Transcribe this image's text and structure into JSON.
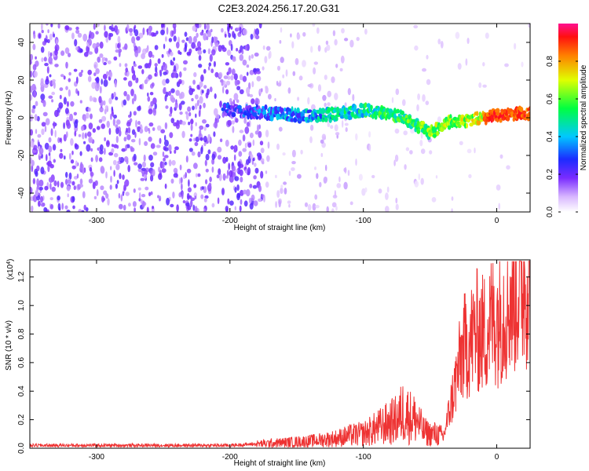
{
  "title": "C2E3.2024.256.17.20.G31",
  "chart_data": [
    {
      "type": "heatmap",
      "xlabel": "Height of straight line (km)",
      "ylabel": "Frequency (Hz)",
      "xlim": [
        -350,
        25
      ],
      "ylim": [
        -50,
        50
      ],
      "xticks": [
        -300,
        -200,
        -100,
        0
      ],
      "yticks": [
        -40,
        -20,
        0,
        20,
        40
      ],
      "colorbar": {
        "label": "Normalized spectral amplitude",
        "range": [
          0,
          1
        ],
        "ticks": [
          "0.0",
          "0.2",
          "0.4",
          "0.6",
          "0.8"
        ]
      },
      "ridge": {
        "x": [
          -205,
          -180,
          -160,
          -140,
          -120,
          -100,
          -90,
          -80,
          -70,
          -60,
          -50,
          -45,
          -40,
          -30,
          -20,
          -10,
          0,
          10,
          25
        ],
        "y": [
          4,
          3,
          2,
          1,
          2,
          4,
          3,
          2,
          0,
          -4,
          -8,
          -6,
          -3,
          -2,
          -1,
          0,
          1,
          2,
          2
        ]
      },
      "regions": [
        {
          "x": [
            -350,
            -175
          ],
          "description_level": "broadband noise (low amplitude, purple)"
        },
        {
          "x": [
            -175,
            -50
          ],
          "description_level": "scattered noise fading"
        },
        {
          "x": [
            -205,
            25
          ],
          "description_level": "coherent ridge near 0 Hz, amplitude rising toward 0 km"
        }
      ]
    },
    {
      "type": "line",
      "xlabel": "Height of straight line (km)",
      "ylabel": "SNR (10 * v/v)",
      "y_scale_label": "(x10",
      "y_scale_exp": "4",
      "y_scale_suffix": ")",
      "xlim": [
        -350,
        25
      ],
      "ylim": [
        0,
        1.32
      ],
      "xticks": [
        -300,
        -200,
        -100,
        0
      ],
      "yticks": [
        "0.0",
        "0.2",
        "0.4",
        "0.6",
        "0.8",
        "1.0",
        "1.2"
      ],
      "color": "#ee3333",
      "series": [
        {
          "x": [
            -350,
            -300,
            -250,
            -200,
            -180,
            -160,
            -140,
            -120,
            -110,
            -100,
            -90,
            -80,
            -75,
            -70,
            -65,
            -60,
            -55,
            -50,
            -45,
            -40,
            -35,
            -30,
            -25,
            -20,
            -15,
            -10,
            -5,
            0,
            5,
            10,
            15,
            20,
            25
          ],
          "y": [
            0.02,
            0.02,
            0.02,
            0.02,
            0.03,
            0.04,
            0.05,
            0.07,
            0.09,
            0.1,
            0.14,
            0.18,
            0.2,
            0.26,
            0.22,
            0.2,
            0.12,
            0.1,
            0.1,
            0.08,
            0.28,
            0.5,
            0.7,
            0.75,
            0.82,
            0.8,
            0.88,
            0.92,
            0.98,
            1.05,
            1.12,
            1.18,
            1.22
          ]
        }
      ]
    }
  ]
}
